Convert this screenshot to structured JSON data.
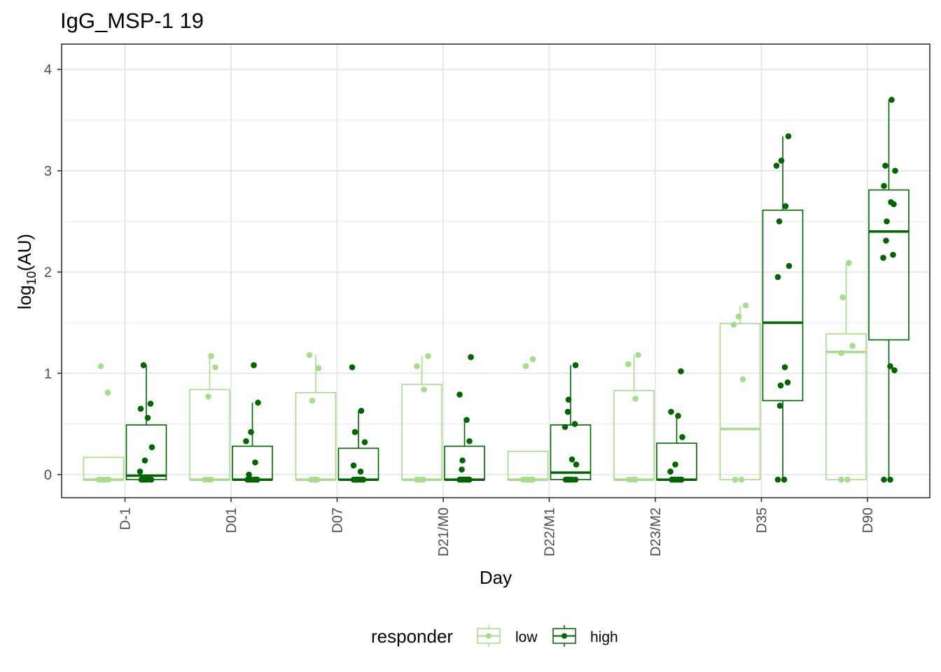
{
  "chart_data": {
    "type": "boxplot",
    "title": "IgG_MSP-1 19",
    "xlabel": "Day",
    "ylabel_main": "log",
    "ylabel_sub": "10",
    "ylabel_tail": "(AU)",
    "ylim": [
      -0.23,
      4.25
    ],
    "yticks": [
      0,
      1,
      2,
      3,
      4
    ],
    "grid": true,
    "legend": {
      "position": "bottom",
      "title": "responder",
      "entries": [
        {
          "key": "low",
          "label": "low"
        },
        {
          "key": "high",
          "label": "high"
        }
      ]
    },
    "colors": {
      "low": "#a6dc8c",
      "high": "#006400"
    },
    "categories": [
      "D-1",
      "D01",
      "D07",
      "D21/M0",
      "D22/M1",
      "D23/M2",
      "D35",
      "D90"
    ],
    "series": [
      {
        "name": "low",
        "boxes": [
          {
            "q1": -0.05,
            "median": -0.05,
            "q3": 0.17,
            "whisker_low": -0.05,
            "whisker_high": 0.17
          },
          {
            "q1": -0.05,
            "median": -0.05,
            "q3": 0.84,
            "whisker_low": -0.05,
            "whisker_high": 1.17
          },
          {
            "q1": -0.05,
            "median": -0.05,
            "q3": 0.81,
            "whisker_low": -0.05,
            "whisker_high": 1.18
          },
          {
            "q1": -0.05,
            "median": -0.05,
            "q3": 0.89,
            "whisker_low": -0.05,
            "whisker_high": 1.17
          },
          {
            "q1": -0.05,
            "median": -0.05,
            "q3": 0.23,
            "whisker_low": -0.05,
            "whisker_high": 0.23
          },
          {
            "q1": -0.05,
            "median": -0.05,
            "q3": 0.83,
            "whisker_low": -0.05,
            "whisker_high": 1.18
          },
          {
            "q1": -0.05,
            "median": 0.45,
            "q3": 1.49,
            "whisker_low": -0.05,
            "whisker_high": 1.67
          },
          {
            "q1": -0.05,
            "median": 1.21,
            "q3": 1.39,
            "whisker_low": -0.05,
            "whisker_high": 2.09
          }
        ],
        "points": [
          [
            1.07,
            0.81,
            -0.05,
            -0.05,
            -0.05,
            -0.05
          ],
          [
            1.17,
            1.06,
            0.77,
            -0.05,
            -0.05,
            -0.05
          ],
          [
            1.18,
            1.05,
            0.73,
            -0.05,
            -0.05,
            -0.05
          ],
          [
            1.17,
            1.07,
            0.84,
            -0.05,
            -0.05,
            -0.05
          ],
          [
            1.14,
            1.07,
            -0.05,
            -0.05,
            -0.05,
            -0.05
          ],
          [
            1.18,
            1.09,
            0.75,
            -0.05,
            -0.05,
            -0.05
          ],
          [
            1.67,
            1.56,
            1.48,
            0.94,
            -0.05,
            -0.05
          ],
          [
            2.09,
            1.75,
            1.27,
            1.2,
            -0.05,
            -0.05
          ]
        ]
      },
      {
        "name": "high",
        "boxes": [
          {
            "q1": -0.05,
            "median": -0.01,
            "q3": 0.49,
            "whisker_low": -0.05,
            "whisker_high": 1.08
          },
          {
            "q1": -0.05,
            "median": -0.05,
            "q3": 0.28,
            "whisker_low": -0.05,
            "whisker_high": 0.71
          },
          {
            "q1": -0.05,
            "median": -0.05,
            "q3": 0.26,
            "whisker_low": -0.05,
            "whisker_high": 0.63
          },
          {
            "q1": -0.05,
            "median": -0.05,
            "q3": 0.28,
            "whisker_low": -0.05,
            "whisker_high": 0.54
          },
          {
            "q1": -0.05,
            "median": 0.02,
            "q3": 0.49,
            "whisker_low": -0.05,
            "whisker_high": 1.08
          },
          {
            "q1": -0.05,
            "median": -0.05,
            "q3": 0.31,
            "whisker_low": -0.05,
            "whisker_high": 0.58
          },
          {
            "q1": 0.73,
            "median": 1.5,
            "q3": 2.61,
            "whisker_low": -0.05,
            "whisker_high": 3.34
          },
          {
            "q1": 1.33,
            "median": 2.4,
            "q3": 2.81,
            "whisker_low": -0.05,
            "whisker_high": 3.7
          }
        ],
        "points": [
          [
            1.08,
            0.7,
            0.65,
            0.56,
            0.27,
            0.14,
            0.03,
            -0.05,
            -0.05,
            -0.05,
            -0.05,
            -0.05
          ],
          [
            1.08,
            0.71,
            0.42,
            0.33,
            0.12,
            0.0,
            -0.05,
            -0.05,
            -0.05,
            -0.05,
            -0.05,
            -0.05
          ],
          [
            1.06,
            0.63,
            0.42,
            0.32,
            0.09,
            0.03,
            -0.05,
            -0.05,
            -0.05,
            -0.05,
            -0.05,
            -0.05
          ],
          [
            1.16,
            0.79,
            0.54,
            0.33,
            0.14,
            0.05,
            -0.05,
            -0.05,
            -0.05,
            -0.05,
            -0.05,
            -0.05
          ],
          [
            1.08,
            0.74,
            0.62,
            0.5,
            0.47,
            0.15,
            0.1,
            -0.05,
            -0.05,
            -0.05,
            -0.05,
            -0.05
          ],
          [
            1.02,
            0.62,
            0.58,
            0.37,
            0.1,
            0.03,
            -0.05,
            -0.05,
            -0.05,
            -0.05,
            -0.05,
            -0.05
          ],
          [
            3.34,
            3.1,
            3.05,
            2.65,
            2.5,
            2.06,
            1.95,
            1.06,
            0.91,
            0.88,
            0.68,
            -0.05,
            -0.05
          ],
          [
            3.7,
            3.05,
            3.0,
            2.85,
            2.69,
            2.67,
            2.5,
            2.31,
            2.17,
            2.14,
            1.07,
            1.03,
            -0.05,
            -0.05
          ]
        ]
      }
    ]
  }
}
